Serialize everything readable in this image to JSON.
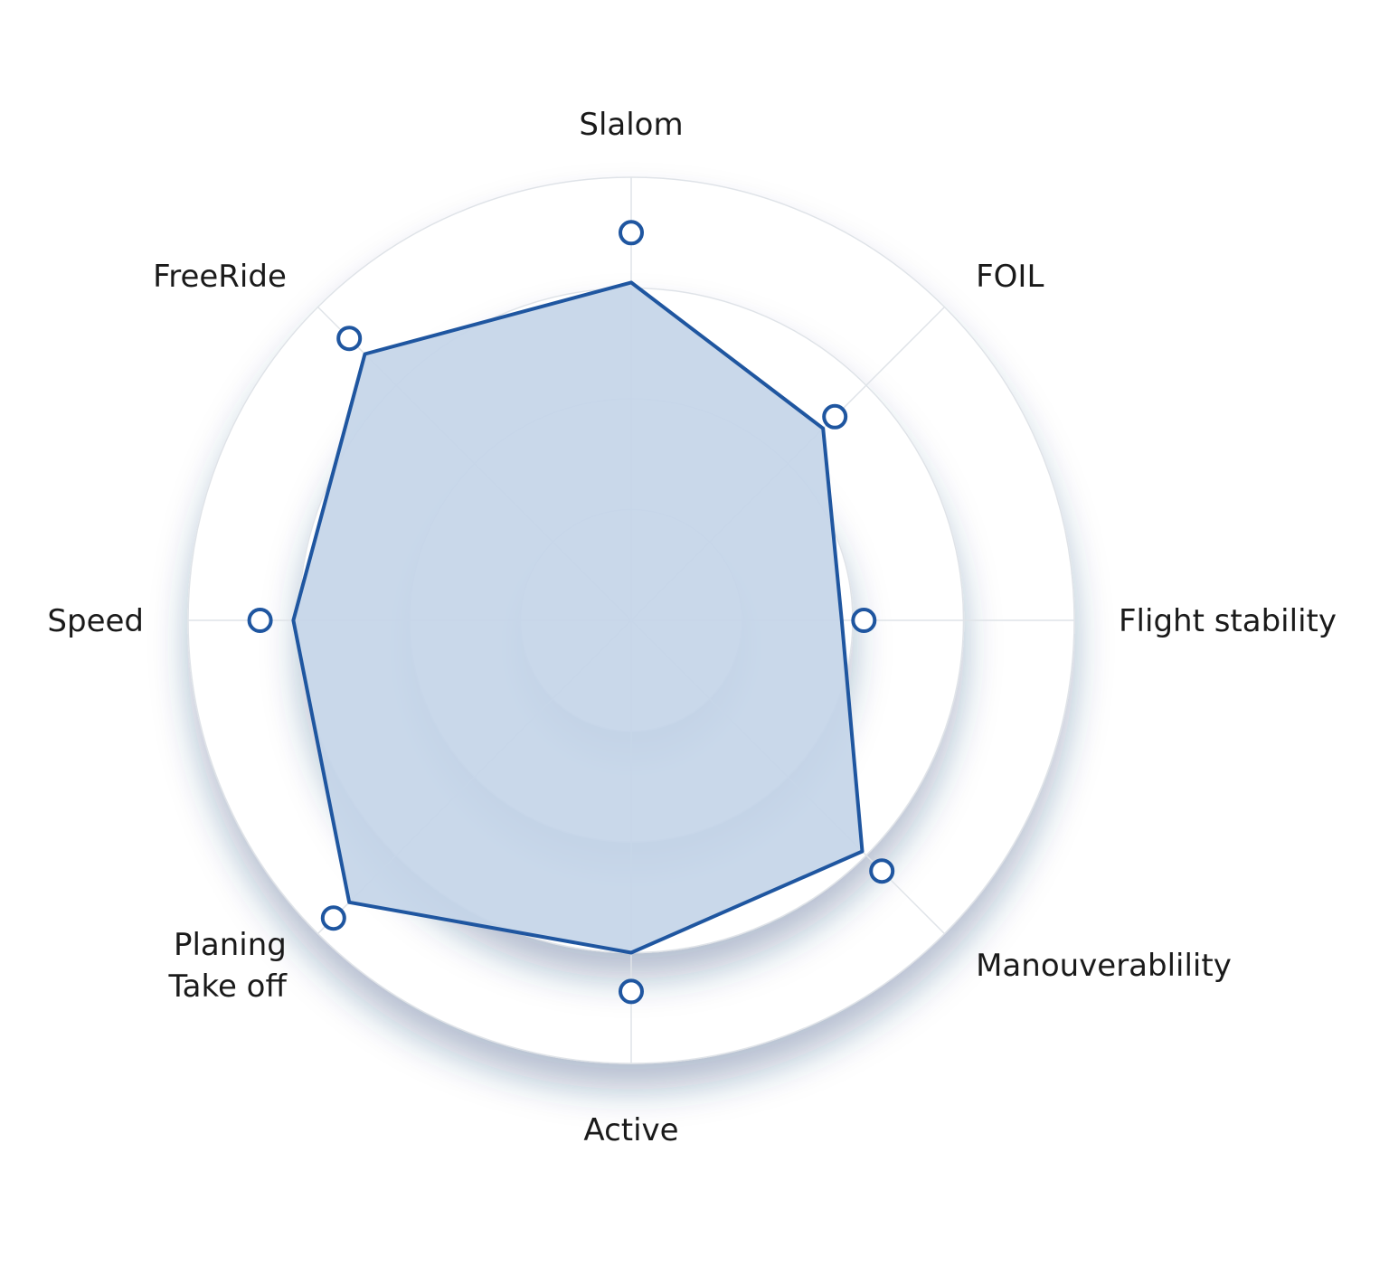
{
  "chart_data": {
    "type": "radar",
    "axes": [
      "Slalom",
      "FOIL",
      "Flight stability",
      "Manouverablility",
      "Active",
      [
        "Planing",
        "Take off"
      ],
      "Speed",
      "FreeRide"
    ],
    "max": 4,
    "rings": [
      1,
      2,
      3,
      4
    ],
    "grid": true,
    "series": [
      {
        "values": [
          3.05,
          2.45,
          1.9,
          2.95,
          3.0,
          3.6,
          3.05,
          3.4
        ]
      }
    ],
    "markers": [
      3.5,
      2.6,
      2.1,
      3.2,
      3.35,
      3.8,
      3.35,
      3.6
    ],
    "colors": {
      "line": "#1f56a0",
      "fill": "#c4d5e8",
      "marker_stroke": "#1f56a0",
      "marker_fill": "#ffffff",
      "grid": "#dfe3e8"
    }
  }
}
